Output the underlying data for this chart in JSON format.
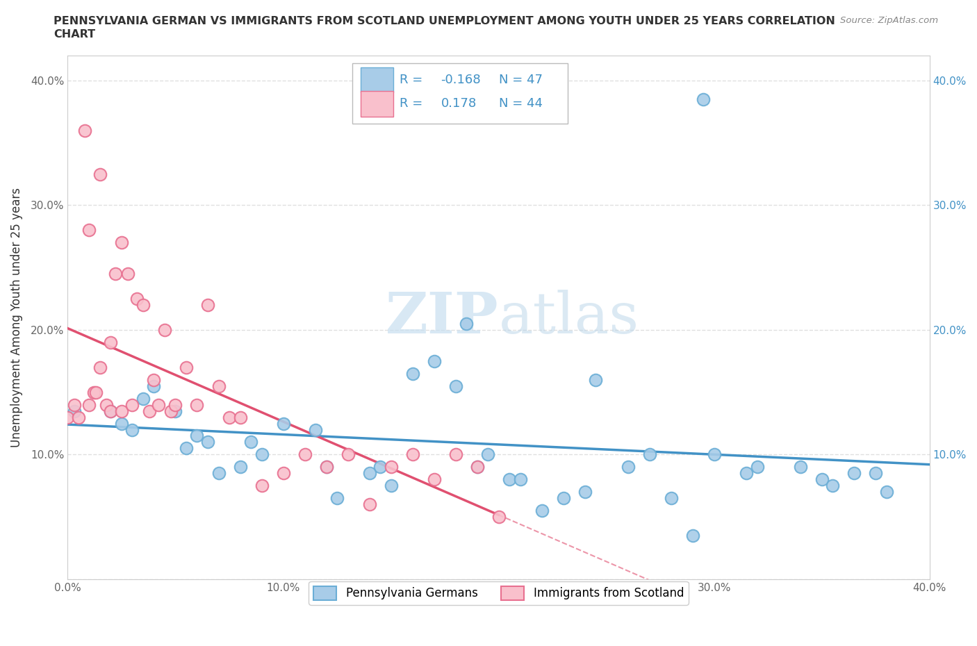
{
  "title_line1": "PENNSYLVANIA GERMAN VS IMMIGRANTS FROM SCOTLAND UNEMPLOYMENT AMONG YOUTH UNDER 25 YEARS CORRELATION",
  "title_line2": "CHART",
  "source_text": "Source: ZipAtlas.com",
  "ylabel": "Unemployment Among Youth under 25 years",
  "xlim": [
    0.0,
    0.4
  ],
  "ylim": [
    -0.02,
    0.44
  ],
  "plot_ylim": [
    0.0,
    0.42
  ],
  "x_ticks": [
    0.0,
    0.1,
    0.2,
    0.3,
    0.4
  ],
  "x_tick_labels": [
    "0.0%",
    "10.0%",
    "20.0%",
    "30.0%",
    "40.0%"
  ],
  "y_ticks": [
    0.0,
    0.1,
    0.2,
    0.3,
    0.4
  ],
  "y_tick_labels_left": [
    "",
    "10.0%",
    "20.0%",
    "30.0%",
    "40.0%"
  ],
  "y_tick_labels_right": [
    "",
    "10.0%",
    "20.0%",
    "30.0%",
    "40.0%"
  ],
  "legend_R1": "-0.168",
  "legend_N1": "47",
  "legend_R2": "0.178",
  "legend_N2": "44",
  "blue_color": "#a8cce8",
  "blue_edge_color": "#6baed6",
  "pink_color": "#f9c0cc",
  "pink_edge_color": "#e87090",
  "trend_blue": "#4292c6",
  "trend_pink": "#e05070",
  "watermark_color": "#c8dff0",
  "background_color": "#ffffff",
  "grid_color": "#e0e0e0",
  "blue_scatter_x": [
    0.003,
    0.02,
    0.025,
    0.03,
    0.035,
    0.04,
    0.05,
    0.055,
    0.06,
    0.065,
    0.07,
    0.08,
    0.085,
    0.09,
    0.1,
    0.115,
    0.12,
    0.125,
    0.14,
    0.145,
    0.15,
    0.16,
    0.17,
    0.18,
    0.185,
    0.19,
    0.195,
    0.205,
    0.21,
    0.22,
    0.23,
    0.24,
    0.245,
    0.26,
    0.27,
    0.28,
    0.29,
    0.295,
    0.3,
    0.315,
    0.32,
    0.34,
    0.35,
    0.355,
    0.365,
    0.375,
    0.38
  ],
  "blue_scatter_y": [
    0.135,
    0.135,
    0.125,
    0.12,
    0.145,
    0.155,
    0.135,
    0.105,
    0.115,
    0.11,
    0.085,
    0.09,
    0.11,
    0.1,
    0.125,
    0.12,
    0.09,
    0.065,
    0.085,
    0.09,
    0.075,
    0.165,
    0.175,
    0.155,
    0.205,
    0.09,
    0.1,
    0.08,
    0.08,
    0.055,
    0.065,
    0.07,
    0.16,
    0.09,
    0.1,
    0.065,
    0.035,
    0.385,
    0.1,
    0.085,
    0.09,
    0.09,
    0.08,
    0.075,
    0.085,
    0.085,
    0.07
  ],
  "pink_scatter_x": [
    0.0,
    0.003,
    0.005,
    0.008,
    0.01,
    0.01,
    0.012,
    0.013,
    0.015,
    0.015,
    0.018,
    0.02,
    0.02,
    0.022,
    0.025,
    0.025,
    0.028,
    0.03,
    0.032,
    0.035,
    0.038,
    0.04,
    0.042,
    0.045,
    0.048,
    0.05,
    0.055,
    0.06,
    0.065,
    0.07,
    0.075,
    0.08,
    0.09,
    0.1,
    0.11,
    0.12,
    0.13,
    0.14,
    0.15,
    0.16,
    0.17,
    0.18,
    0.19,
    0.2
  ],
  "pink_scatter_y": [
    0.13,
    0.14,
    0.13,
    0.36,
    0.14,
    0.28,
    0.15,
    0.15,
    0.17,
    0.325,
    0.14,
    0.135,
    0.19,
    0.245,
    0.27,
    0.135,
    0.245,
    0.14,
    0.225,
    0.22,
    0.135,
    0.16,
    0.14,
    0.2,
    0.135,
    0.14,
    0.17,
    0.14,
    0.22,
    0.155,
    0.13,
    0.13,
    0.075,
    0.085,
    0.1,
    0.09,
    0.1,
    0.06,
    0.09,
    0.1,
    0.08,
    0.1,
    0.09,
    0.05
  ]
}
